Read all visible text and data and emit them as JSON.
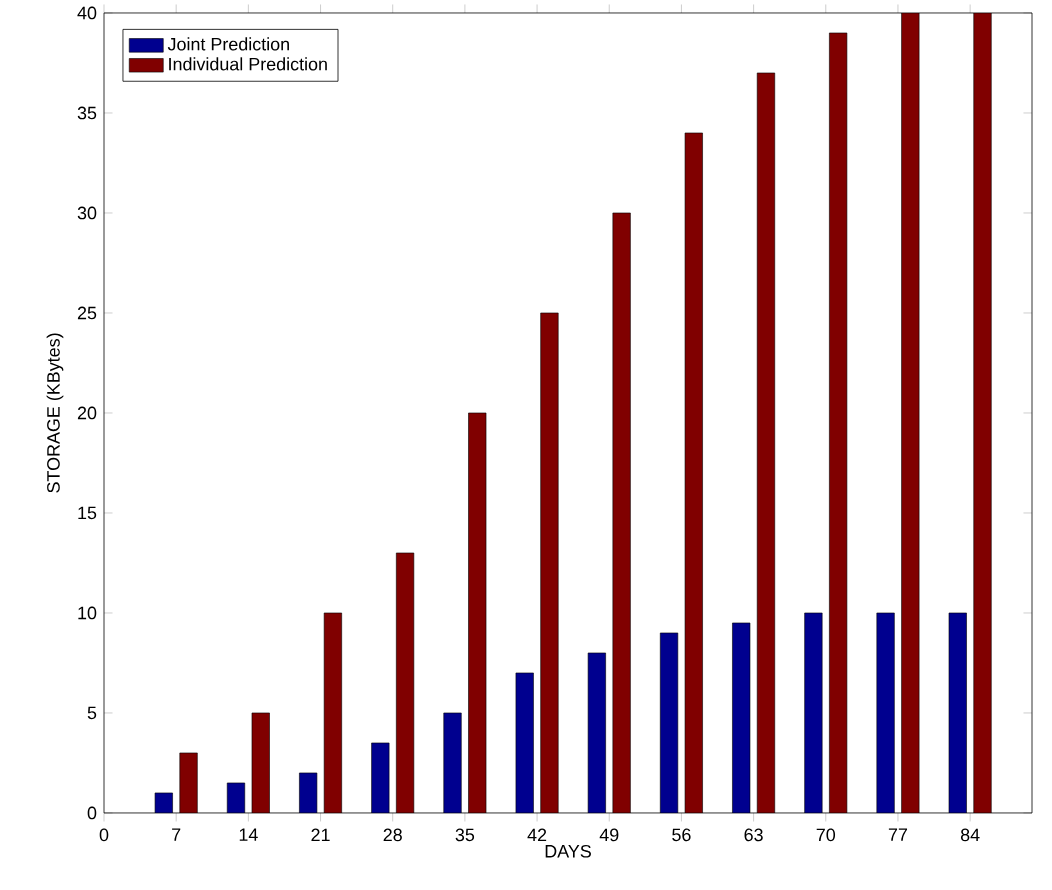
{
  "chart_data": {
    "type": "bar",
    "xlabel": "DAYS",
    "ylabel": "STORAGE (KBytes)",
    "x": [
      7,
      14,
      21,
      28,
      35,
      42,
      49,
      56,
      63,
      70,
      77,
      84
    ],
    "series": [
      {
        "name": "Joint Prediction",
        "color": "#00008f",
        "values": [
          1,
          1.5,
          2,
          3.5,
          5,
          7,
          8,
          9,
          9.5,
          10,
          10,
          10
        ]
      },
      {
        "name": "Individual Prediction",
        "color": "#800000",
        "values": [
          3,
          5,
          10,
          13,
          20,
          25,
          30,
          34,
          37,
          39,
          40,
          40
        ]
      }
    ],
    "xlim": [
      0,
      90
    ],
    "ylim": [
      0,
      40
    ],
    "xticks": [
      0,
      7,
      14,
      21,
      28,
      35,
      42,
      49,
      56,
      63,
      70,
      77,
      84
    ],
    "yticks": [
      0,
      5,
      10,
      15,
      20,
      25,
      30,
      35,
      40
    ],
    "grid": false,
    "legend": "top left"
  }
}
